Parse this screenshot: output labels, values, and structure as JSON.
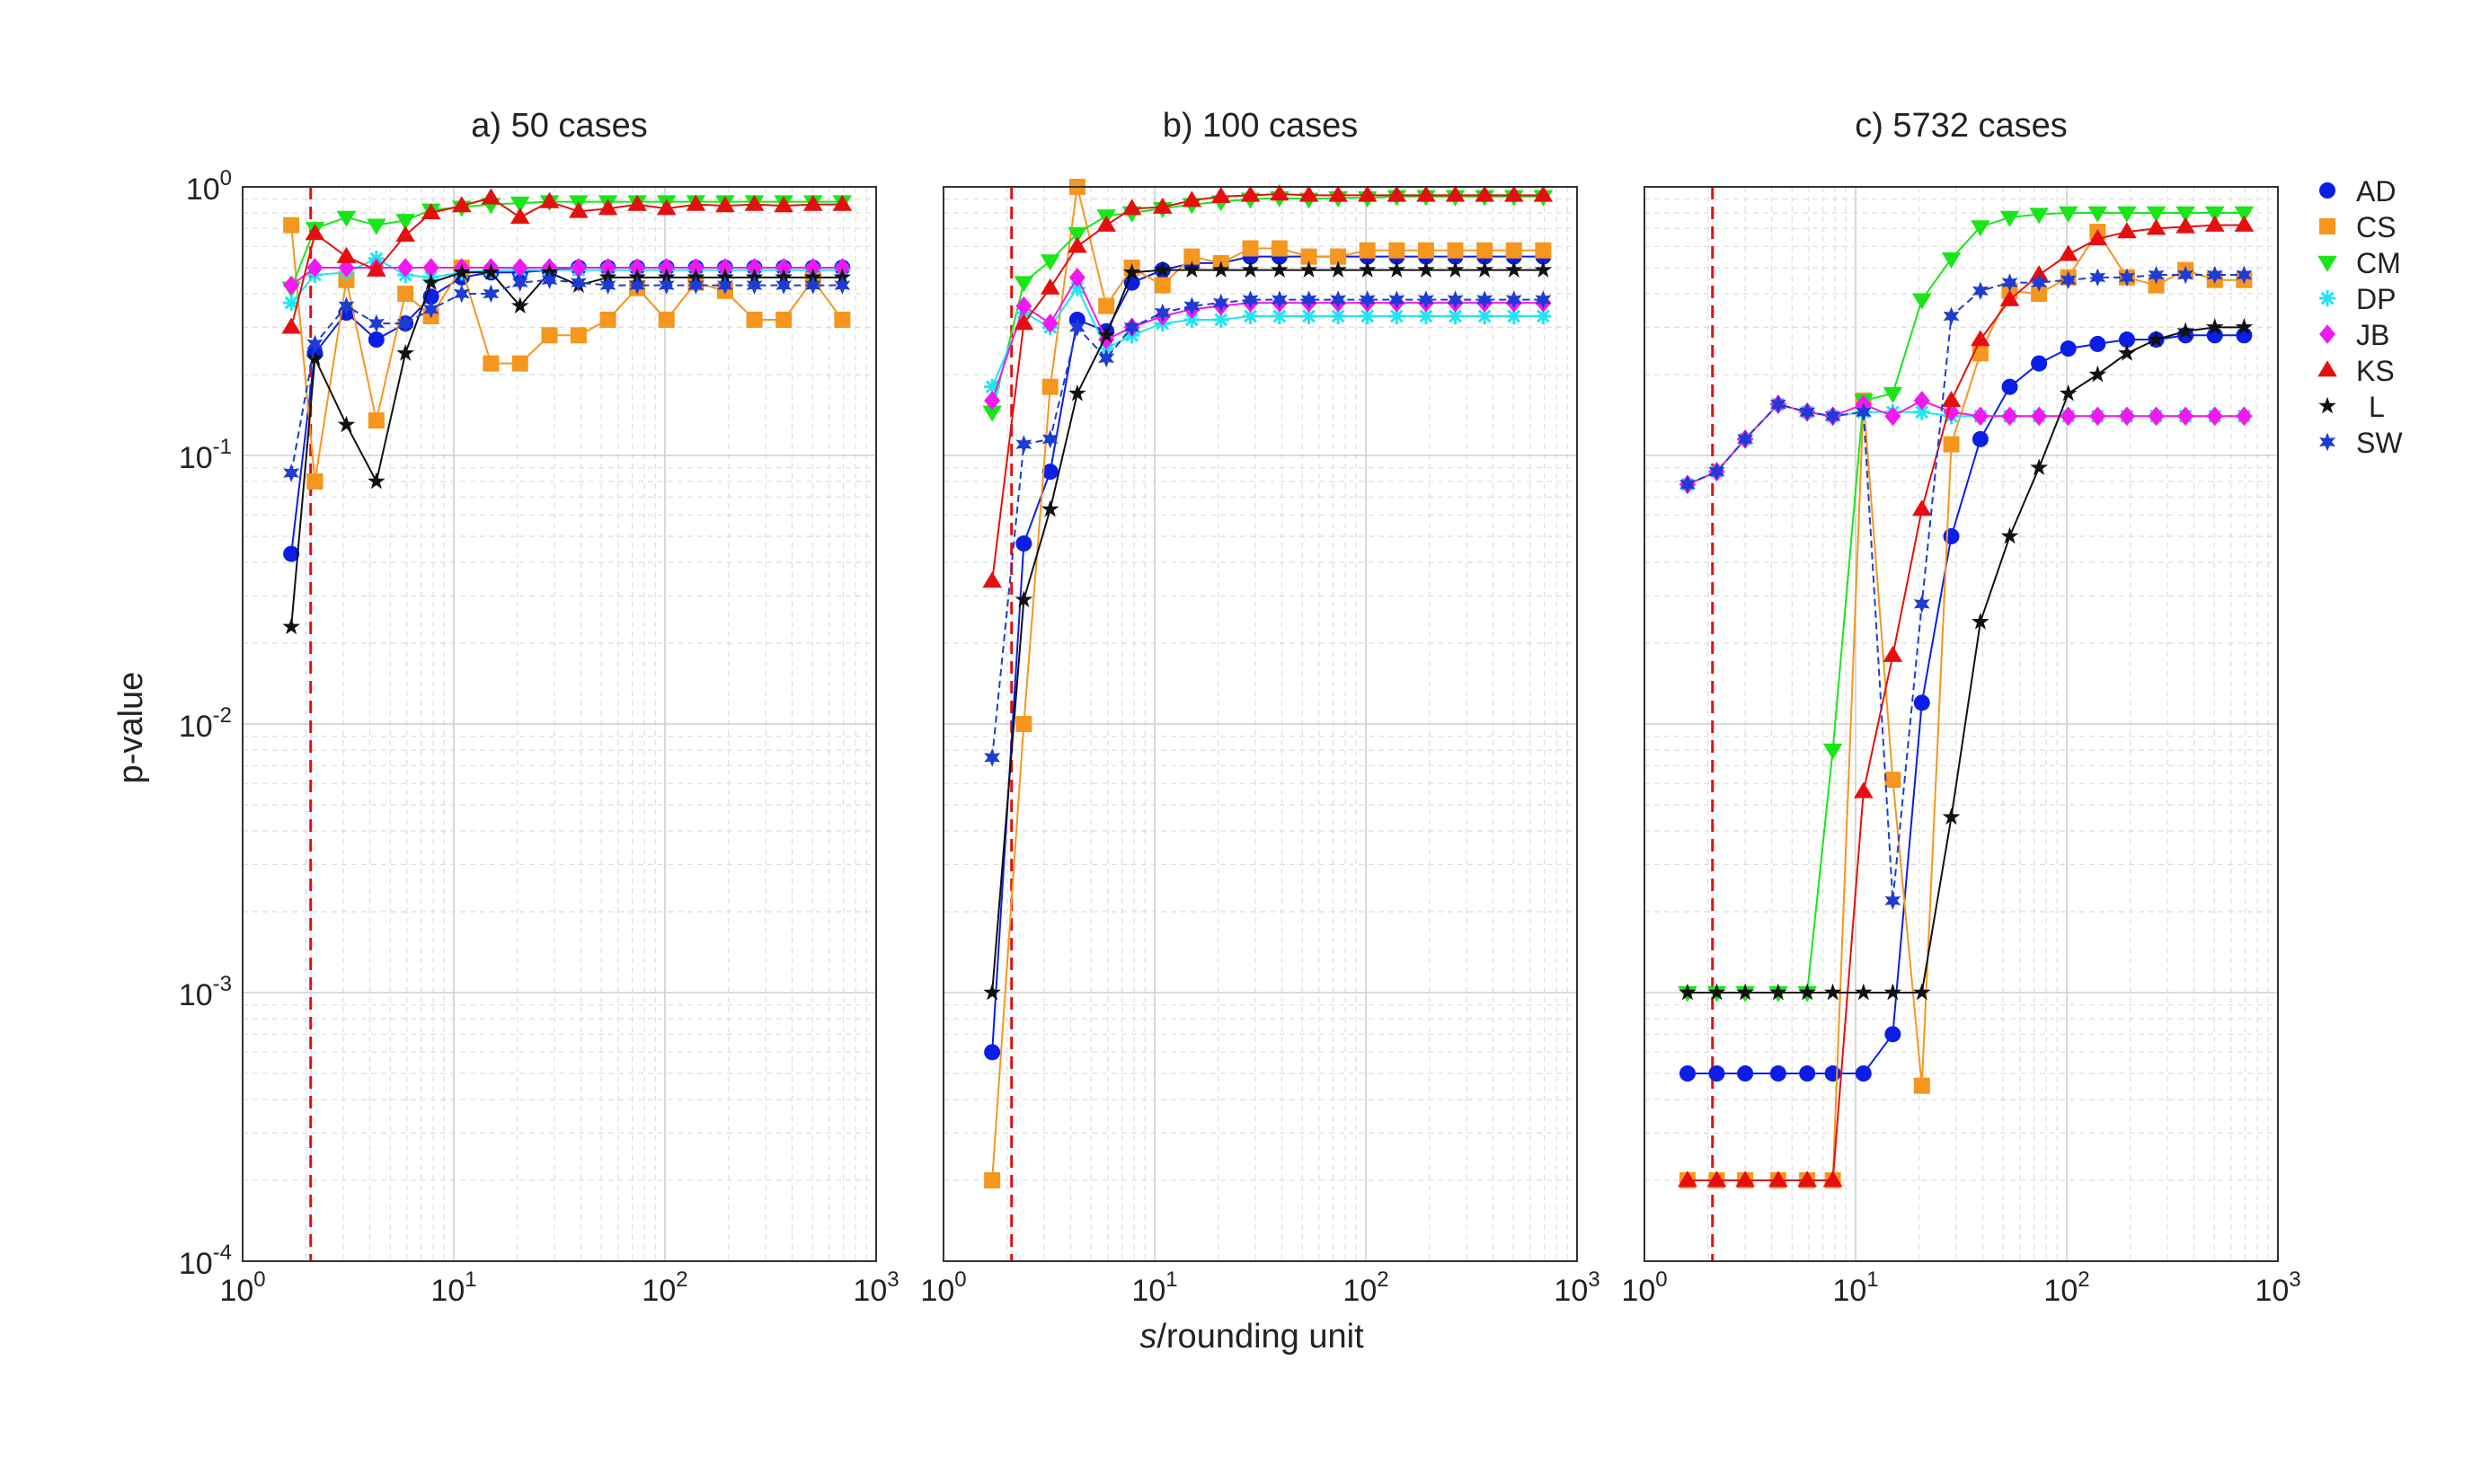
{
  "figure": {
    "xlabel_italic": "s",
    "xlabel_rest": "/rounding unit",
    "ylabel": "p-value"
  },
  "styles": {
    "AD": {
      "color": "#0a1ee6",
      "marker": "circle",
      "dash": false
    },
    "CS": {
      "color": "#f5961e",
      "marker": "square",
      "dash": false
    },
    "CM": {
      "color": "#19e619",
      "marker": "triangle-down",
      "dash": false
    },
    "DP": {
      "color": "#1ee6f0",
      "marker": "asterisk",
      "dash": false
    },
    "JB": {
      "color": "#f019f0",
      "marker": "diamond",
      "dash": false
    },
    "KS": {
      "color": "#e60f0f",
      "marker": "triangle-up",
      "dash": false
    },
    "L": {
      "color": "#111111",
      "marker": "star",
      "dash": false
    },
    "SW": {
      "color": "#1e3cd2",
      "marker": "hexagram",
      "dash": true
    }
  },
  "legend": [
    {
      "name": "AD"
    },
    {
      "name": "CS"
    },
    {
      "name": "CM"
    },
    {
      "name": "DP"
    },
    {
      "name": "JB"
    },
    {
      "name": "KS"
    },
    {
      "name": "L"
    },
    {
      "name": "SW"
    }
  ],
  "chart_data": [
    {
      "type": "line",
      "title": "a) 50 cases",
      "xscale": "log",
      "yscale": "log",
      "xlim": [
        1,
        1000
      ],
      "ylim": [
        0.0001,
        1
      ],
      "x_ticks": [
        {
          "base": "10",
          "exp": "0"
        },
        {
          "base": "10",
          "exp": "1"
        },
        {
          "base": "10",
          "exp": "2"
        },
        {
          "base": "10",
          "exp": "3"
        }
      ],
      "y_ticks": [
        {
          "base": "10",
          "exp": "-4"
        },
        {
          "base": "10",
          "exp": "-3"
        },
        {
          "base": "10",
          "exp": "-2"
        },
        {
          "base": "10",
          "exp": "-1"
        },
        {
          "base": "10",
          "exp": "0"
        }
      ],
      "grid": true,
      "threshold_x": 2.1,
      "x": [
        1.7,
        2.2,
        3.1,
        4.3,
        5.9,
        7.8,
        10.9,
        15,
        20.6,
        28.4,
        39,
        53.7,
        73.9,
        101.7,
        140,
        192.7,
        265.2,
        365,
        502.4,
        691.6
      ],
      "series": [
        {
          "name": "AD",
          "values": [
            0.043,
            0.24,
            0.34,
            0.27,
            0.31,
            0.39,
            0.46,
            0.48,
            0.48,
            0.49,
            0.5,
            0.5,
            0.5,
            0.5,
            0.5,
            0.5,
            0.5,
            0.5,
            0.5,
            0.5
          ]
        },
        {
          "name": "CS",
          "values": [
            0.72,
            0.08,
            0.45,
            0.135,
            0.4,
            0.33,
            0.5,
            0.22,
            0.22,
            0.28,
            0.28,
            0.32,
            0.42,
            0.32,
            0.44,
            0.41,
            0.32,
            0.32,
            0.45,
            0.32
          ]
        },
        {
          "name": "CM",
          "values": [
            0.42,
            0.7,
            0.77,
            0.72,
            0.75,
            0.82,
            0.84,
            0.86,
            0.87,
            0.88,
            0.88,
            0.88,
            0.88,
            0.88,
            0.88,
            0.88,
            0.88,
            0.88,
            0.88,
            0.88
          ]
        },
        {
          "name": "DP",
          "values": [
            0.37,
            0.47,
            0.48,
            0.54,
            0.47,
            0.46,
            0.48,
            0.49,
            0.49,
            0.49,
            0.49,
            0.49,
            0.49,
            0.49,
            0.49,
            0.49,
            0.49,
            0.49,
            0.49,
            0.49
          ]
        },
        {
          "name": "JB",
          "values": [
            0.43,
            0.5,
            0.5,
            0.5,
            0.5,
            0.5,
            0.5,
            0.5,
            0.5,
            0.5,
            0.5,
            0.5,
            0.5,
            0.5,
            0.5,
            0.5,
            0.5,
            0.5,
            0.5,
            0.5
          ]
        },
        {
          "name": "KS",
          "values": [
            0.3,
            0.67,
            0.55,
            0.49,
            0.66,
            0.8,
            0.85,
            0.91,
            0.77,
            0.88,
            0.81,
            0.83,
            0.86,
            0.83,
            0.86,
            0.85,
            0.86,
            0.85,
            0.86,
            0.86
          ]
        },
        {
          "name": "L",
          "values": [
            0.023,
            0.23,
            0.13,
            0.08,
            0.24,
            0.44,
            0.48,
            0.48,
            0.36,
            0.48,
            0.43,
            0.46,
            0.46,
            0.46,
            0.46,
            0.46,
            0.46,
            0.46,
            0.46,
            0.46
          ]
        },
        {
          "name": "SW",
          "values": [
            0.086,
            0.26,
            0.36,
            0.31,
            0.31,
            0.35,
            0.4,
            0.4,
            0.44,
            0.45,
            0.44,
            0.43,
            0.43,
            0.43,
            0.43,
            0.43,
            0.43,
            0.43,
            0.43,
            0.43
          ]
        }
      ]
    },
    {
      "type": "line",
      "title": "b) 100 cases",
      "xscale": "log",
      "yscale": "log",
      "xlim": [
        1,
        1000
      ],
      "ylim": [
        0.0001,
        1
      ],
      "x_ticks": [
        {
          "base": "10",
          "exp": "0"
        },
        {
          "base": "10",
          "exp": "1"
        },
        {
          "base": "10",
          "exp": "2"
        },
        {
          "base": "10",
          "exp": "3"
        }
      ],
      "grid": true,
      "threshold_x": 2.1,
      "x": [
        1.7,
        2.4,
        3.2,
        4.3,
        5.9,
        7.8,
        10.9,
        15,
        20.6,
        28.4,
        39,
        53.7,
        73.9,
        101.7,
        140,
        192.7,
        265.2,
        365,
        502.4,
        691.6
      ],
      "series": [
        {
          "name": "AD",
          "values": [
            0.0006,
            0.047,
            0.087,
            0.32,
            0.29,
            0.44,
            0.49,
            0.52,
            0.52,
            0.55,
            0.55,
            0.55,
            0.55,
            0.55,
            0.55,
            0.55,
            0.55,
            0.55,
            0.55,
            0.55
          ]
        },
        {
          "name": "CS",
          "values": [
            0.0002,
            0.01,
            0.18,
            1.0,
            0.36,
            0.5,
            0.43,
            0.55,
            0.52,
            0.59,
            0.59,
            0.55,
            0.55,
            0.58,
            0.58,
            0.58,
            0.58,
            0.58,
            0.58,
            0.58
          ]
        },
        {
          "name": "CM",
          "values": [
            0.145,
            0.44,
            0.53,
            0.67,
            0.78,
            0.8,
            0.83,
            0.86,
            0.88,
            0.9,
            0.91,
            0.9,
            0.91,
            0.91,
            0.92,
            0.92,
            0.92,
            0.92,
            0.92,
            0.92
          ]
        },
        {
          "name": "DP",
          "values": [
            0.18,
            0.34,
            0.3,
            0.42,
            0.25,
            0.28,
            0.31,
            0.32,
            0.32,
            0.33,
            0.33,
            0.33,
            0.33,
            0.33,
            0.33,
            0.33,
            0.33,
            0.33,
            0.33,
            0.33
          ]
        },
        {
          "name": "JB",
          "values": [
            0.16,
            0.36,
            0.31,
            0.46,
            0.27,
            0.3,
            0.33,
            0.35,
            0.36,
            0.37,
            0.37,
            0.37,
            0.37,
            0.37,
            0.37,
            0.37,
            0.37,
            0.37,
            0.37,
            0.37
          ]
        },
        {
          "name": "KS",
          "values": [
            0.034,
            0.31,
            0.42,
            0.6,
            0.72,
            0.83,
            0.84,
            0.89,
            0.92,
            0.93,
            0.94,
            0.93,
            0.93,
            0.93,
            0.93,
            0.93,
            0.93,
            0.93,
            0.93,
            0.93
          ]
        },
        {
          "name": "L",
          "values": [
            0.001,
            0.029,
            0.063,
            0.17,
            0.28,
            0.48,
            0.49,
            0.49,
            0.49,
            0.49,
            0.49,
            0.49,
            0.49,
            0.49,
            0.49,
            0.49,
            0.49,
            0.49,
            0.49,
            0.49
          ]
        },
        {
          "name": "SW",
          "values": [
            0.0075,
            0.11,
            0.115,
            0.3,
            0.23,
            0.3,
            0.34,
            0.36,
            0.37,
            0.38,
            0.38,
            0.38,
            0.38,
            0.38,
            0.38,
            0.38,
            0.38,
            0.38,
            0.38,
            0.38
          ]
        }
      ]
    },
    {
      "type": "line",
      "title": "c) 5732 cases",
      "xscale": "log",
      "yscale": "log",
      "xlim": [
        1,
        1000
      ],
      "ylim": [
        0.0001,
        1
      ],
      "x_ticks": [
        {
          "base": "10",
          "exp": "0"
        },
        {
          "base": "10",
          "exp": "1"
        },
        {
          "base": "10",
          "exp": "2"
        },
        {
          "base": "10",
          "exp": "3"
        }
      ],
      "grid": true,
      "threshold_x": 2.1,
      "x": [
        1.6,
        2.2,
        3.0,
        4.3,
        5.9,
        7.8,
        10.9,
        15,
        20.6,
        28.4,
        39,
        53.7,
        73.9,
        101.7,
        140,
        192.7,
        265.2,
        365,
        502.4,
        691.6
      ],
      "series": [
        {
          "name": "AD",
          "values": [
            0.0005,
            0.0005,
            0.0005,
            0.0005,
            0.0005,
            0.0005,
            0.0005,
            0.0007,
            0.012,
            0.05,
            0.115,
            0.18,
            0.22,
            0.25,
            0.26,
            0.27,
            0.27,
            0.28,
            0.28,
            0.28
          ]
        },
        {
          "name": "CS",
          "values": [
            0.0002,
            0.0002,
            0.0002,
            0.0002,
            0.0002,
            0.0002,
            0.16,
            0.0062,
            0.00045,
            0.11,
            0.24,
            0.41,
            0.4,
            0.46,
            0.68,
            0.46,
            0.43,
            0.49,
            0.45,
            0.45
          ]
        },
        {
          "name": "CM",
          "values": [
            0.001,
            0.001,
            0.001,
            0.001,
            0.001,
            0.008,
            0.16,
            0.17,
            0.38,
            0.54,
            0.71,
            0.77,
            0.79,
            0.8,
            0.8,
            0.8,
            0.8,
            0.8,
            0.8,
            0.8
          ]
        },
        {
          "name": "DP",
          "values": [
            0.078,
            0.087,
            0.115,
            0.155,
            0.145,
            0.14,
            0.145,
            0.145,
            0.145,
            0.14,
            0.14,
            0.14,
            0.14,
            0.14,
            0.14,
            0.14,
            0.14,
            0.14,
            0.14,
            0.14
          ]
        },
        {
          "name": "JB",
          "values": [
            0.078,
            0.087,
            0.115,
            0.155,
            0.145,
            0.14,
            0.155,
            0.14,
            0.16,
            0.145,
            0.14,
            0.14,
            0.14,
            0.14,
            0.14,
            0.14,
            0.14,
            0.14,
            0.14,
            0.14
          ]
        },
        {
          "name": "KS",
          "values": [
            0.0002,
            0.0002,
            0.0002,
            0.0002,
            0.0002,
            0.0002,
            0.0056,
            0.018,
            0.063,
            0.16,
            0.27,
            0.38,
            0.47,
            0.56,
            0.64,
            0.68,
            0.7,
            0.71,
            0.72,
            0.72
          ]
        },
        {
          "name": "L",
          "values": [
            0.001,
            0.001,
            0.001,
            0.001,
            0.001,
            0.001,
            0.001,
            0.001,
            0.001,
            0.0045,
            0.024,
            0.05,
            0.09,
            0.17,
            0.2,
            0.24,
            0.27,
            0.29,
            0.3,
            0.3
          ]
        },
        {
          "name": "SW",
          "values": [
            0.078,
            0.087,
            0.115,
            0.155,
            0.145,
            0.14,
            0.145,
            0.0022,
            0.028,
            0.33,
            0.41,
            0.44,
            0.44,
            0.45,
            0.46,
            0.46,
            0.47,
            0.47,
            0.47,
            0.47
          ]
        }
      ]
    }
  ]
}
